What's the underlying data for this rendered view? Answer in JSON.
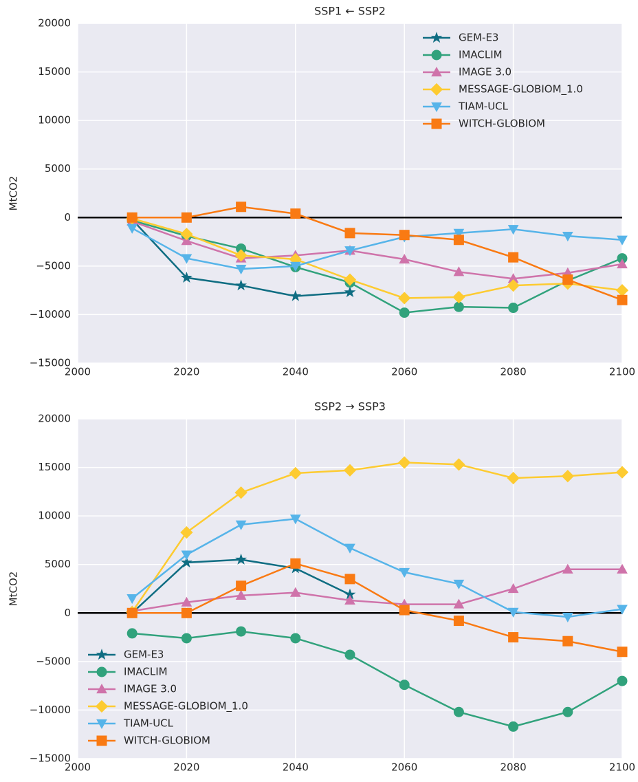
{
  "chart_data": [
    {
      "type": "line",
      "title": "SSP1 ← SSP2",
      "y_label": "MtCO2",
      "x": [
        2010,
        2020,
        2030,
        2040,
        2050,
        2060,
        2070,
        2080,
        2090,
        2100
      ],
      "xlim": [
        2000,
        2100
      ],
      "xticks": [
        2000,
        2020,
        2040,
        2060,
        2080,
        2100
      ],
      "ylim": [
        -15000,
        20000
      ],
      "yticks": [
        {
          "value": -15000,
          "label": "−15000"
        },
        {
          "value": -10000,
          "label": "−10000"
        },
        {
          "value": -5000,
          "label": "−5000"
        },
        0,
        5000,
        10000,
        15000,
        20000
      ],
      "grid": true,
      "legend": "upper right",
      "series": [
        {
          "name": "GEM-E3",
          "color": "#0f6d82",
          "marker": "star",
          "values": [
            -200,
            -6200,
            -7000,
            -8100,
            -7700,
            null,
            null,
            null,
            null,
            null
          ]
        },
        {
          "name": "IMACLIM",
          "color": "#31a27c",
          "marker": "circle",
          "values": [
            -300,
            -1900,
            -3200,
            -5100,
            -6700,
            -9800,
            -9200,
            -9300,
            -6500,
            -4200
          ]
        },
        {
          "name": "IMAGE 3.0",
          "color": "#cf73aa",
          "marker": "triangle-up",
          "values": [
            -400,
            -2400,
            -4200,
            -3900,
            -3400,
            -4300,
            -5600,
            -6300,
            -5700,
            -4800
          ]
        },
        {
          "name": "MESSAGE-GLOBIOM_1.0",
          "color": "#fdcb31",
          "marker": "diamond",
          "values": [
            -100,
            -1700,
            -3900,
            -4300,
            -6400,
            -8300,
            -8200,
            -7000,
            -6800,
            -7500
          ]
        },
        {
          "name": "TIAM-UCL",
          "color": "#56b4e9",
          "marker": "triangle-down",
          "values": [
            -1100,
            -4200,
            -5300,
            -5000,
            -3400,
            -2000,
            -1600,
            -1200,
            -1900,
            -2300
          ]
        },
        {
          "name": "WITCH-GLOBIOM",
          "color": "#f97a13",
          "marker": "square",
          "values": [
            0,
            0,
            1100,
            400,
            -1600,
            -1800,
            -2300,
            -4100,
            -6400,
            -8500
          ]
        }
      ]
    },
    {
      "type": "line",
      "title": "SSP2 → SSP3",
      "y_label": "MtCO2",
      "x": [
        2010,
        2020,
        2030,
        2040,
        2050,
        2060,
        2070,
        2080,
        2090,
        2100
      ],
      "xlim": [
        2000,
        2100
      ],
      "xticks": [
        2000,
        2020,
        2040,
        2060,
        2080,
        2100
      ],
      "ylim": [
        -15000,
        20000
      ],
      "yticks": [
        {
          "value": -15000,
          "label": "−15000"
        },
        {
          "value": -10000,
          "label": "−10000"
        },
        {
          "value": -5000,
          "label": "−5000"
        },
        0,
        5000,
        10000,
        15000,
        20000
      ],
      "grid": true,
      "legend": "lower left",
      "series": [
        {
          "name": "GEM-E3",
          "color": "#0f6d82",
          "marker": "star",
          "values": [
            0,
            5200,
            5500,
            4600,
            1900,
            null,
            null,
            null,
            null,
            null
          ]
        },
        {
          "name": "IMACLIM",
          "color": "#31a27c",
          "marker": "circle",
          "values": [
            -2100,
            -2600,
            -1900,
            -2600,
            -4300,
            -7400,
            -10200,
            -11700,
            -10200,
            -7000
          ]
        },
        {
          "name": "IMAGE 3.0",
          "color": "#cf73aa",
          "marker": "triangle-up",
          "values": [
            200,
            1100,
            1800,
            2100,
            1300,
            900,
            900,
            2500,
            4500,
            4500
          ]
        },
        {
          "name": "MESSAGE-GLOBIOM_1.0",
          "color": "#fdcb31",
          "marker": "diamond",
          "values": [
            100,
            8300,
            12400,
            14400,
            14700,
            15500,
            15300,
            13900,
            14100,
            14500
          ]
        },
        {
          "name": "TIAM-UCL",
          "color": "#56b4e9",
          "marker": "triangle-down",
          "values": [
            1500,
            6000,
            9100,
            9700,
            6700,
            4200,
            3000,
            100,
            -400,
            400
          ]
        },
        {
          "name": "WITCH-GLOBIOM",
          "color": "#f97a13",
          "marker": "square",
          "values": [
            0,
            0,
            2800,
            5100,
            3500,
            300,
            -800,
            -2500,
            -2900,
            -4000
          ]
        }
      ]
    }
  ]
}
